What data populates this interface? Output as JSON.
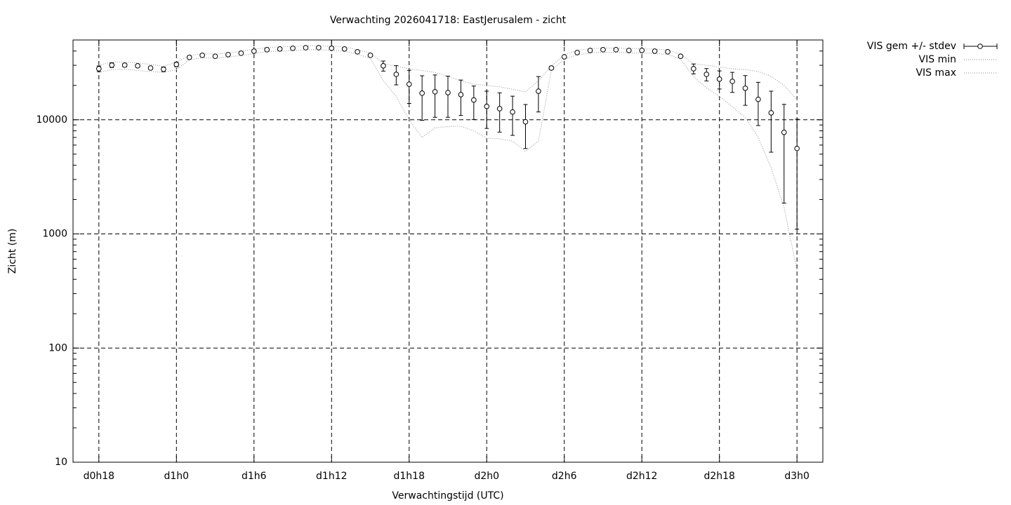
{
  "chart_data": {
    "type": "errorbar-line",
    "title": "Verwachting 2026041718: EastJerusalem - zicht",
    "xlabel": "Verwachtingstijd (UTC)",
    "ylabel": "Zicht (m)",
    "x": [
      18,
      19,
      20,
      21,
      22,
      23,
      24,
      25,
      26,
      27,
      28,
      29,
      30,
      31,
      32,
      33,
      34,
      35,
      36,
      37,
      38,
      39,
      40,
      41,
      42,
      43,
      44,
      45,
      46,
      47,
      48,
      49,
      50,
      51,
      52,
      53,
      54,
      55,
      56,
      57,
      58,
      59,
      60,
      61,
      62,
      63,
      64,
      65,
      66,
      67,
      68,
      69,
      70,
      71,
      72
    ],
    "xlim": [
      16,
      74
    ],
    "xticks": [
      {
        "value": 18,
        "label": "d0h18"
      },
      {
        "value": 24,
        "label": "d1h0"
      },
      {
        "value": 30,
        "label": "d1h6"
      },
      {
        "value": 36,
        "label": "d1h12"
      },
      {
        "value": 42,
        "label": "d1h18"
      },
      {
        "value": 48,
        "label": "d2h0"
      },
      {
        "value": 54,
        "label": "d2h6"
      },
      {
        "value": 60,
        "label": "d2h12"
      },
      {
        "value": 66,
        "label": "d2h18"
      },
      {
        "value": 72,
        "label": "d3h0"
      }
    ],
    "ylim": [
      10,
      50000
    ],
    "yticks": [
      10,
      100,
      1000,
      10000
    ],
    "log_y": true,
    "grid": true,
    "legend": "outside-top-right",
    "series": [
      {
        "name": "VIS gem +/- stdev",
        "color": "#000000",
        "values": [
          28000,
          30100,
          30100,
          29700,
          28400,
          27700,
          30500,
          35200,
          36700,
          36000,
          37200,
          38300,
          39900,
          41100,
          41700,
          42300,
          42800,
          42800,
          42300,
          41700,
          39400,
          36700,
          29700,
          25000,
          20500,
          17100,
          17600,
          17300,
          16600,
          14900,
          13100,
          12500,
          11700,
          9600,
          17800,
          28400,
          35600,
          38800,
          40500,
          41100,
          41100,
          40500,
          40500,
          39900,
          39400,
          36000,
          28000,
          25000,
          22700,
          21700,
          18900,
          15100,
          11500,
          7760,
          5600
        ],
        "errors": [
          1600,
          1400,
          1100,
          900,
          900,
          1300,
          1400,
          1000,
          900,
          800,
          900,
          900,
          800,
          700,
          700,
          600,
          600,
          600,
          600,
          700,
          900,
          1100,
          3000,
          4800,
          6600,
          7200,
          7100,
          6800,
          5700,
          4850,
          4700,
          4700,
          4400,
          4000,
          6100,
          1000,
          900,
          700,
          700,
          600,
          600,
          700,
          700,
          800,
          900,
          1100,
          2800,
          3100,
          4100,
          4350,
          5500,
          6200,
          6300,
          5900,
          4500
        ]
      },
      {
        "name": "VIS min",
        "color": "#a0a0a0",
        "values": [
          26000,
          27500,
          27800,
          27000,
          26500,
          26000,
          27500,
          33500,
          35000,
          34500,
          35500,
          36500,
          38000,
          39500,
          40000,
          40500,
          41000,
          41000,
          40500,
          40000,
          37500,
          34500,
          22000,
          16000,
          10000,
          7000,
          8500,
          8700,
          8800,
          8000,
          6900,
          6800,
          6500,
          5300,
          6500,
          27000,
          34000,
          37000,
          38500,
          39000,
          39000,
          38500,
          38500,
          38000,
          37500,
          34000,
          24000,
          19000,
          16000,
          13000,
          10500,
          7000,
          3800,
          1700,
          480
        ]
      },
      {
        "name": "VIS max",
        "color": "#a0a0a0",
        "values": [
          30000,
          32000,
          32000,
          31500,
          30500,
          29500,
          32000,
          36500,
          38000,
          37500,
          38500,
          40000,
          41500,
          43000,
          43500,
          44000,
          44500,
          44500,
          44000,
          43500,
          41000,
          38500,
          31000,
          29500,
          28000,
          27000,
          26000,
          24000,
          22000,
          20500,
          20000,
          19500,
          18500,
          17500,
          22000,
          29500,
          37000,
          40500,
          42000,
          42500,
          42500,
          42000,
          42000,
          41500,
          41000,
          37500,
          31000,
          30000,
          29000,
          28000,
          27500,
          26500,
          24000,
          20000,
          15000
        ]
      }
    ]
  }
}
